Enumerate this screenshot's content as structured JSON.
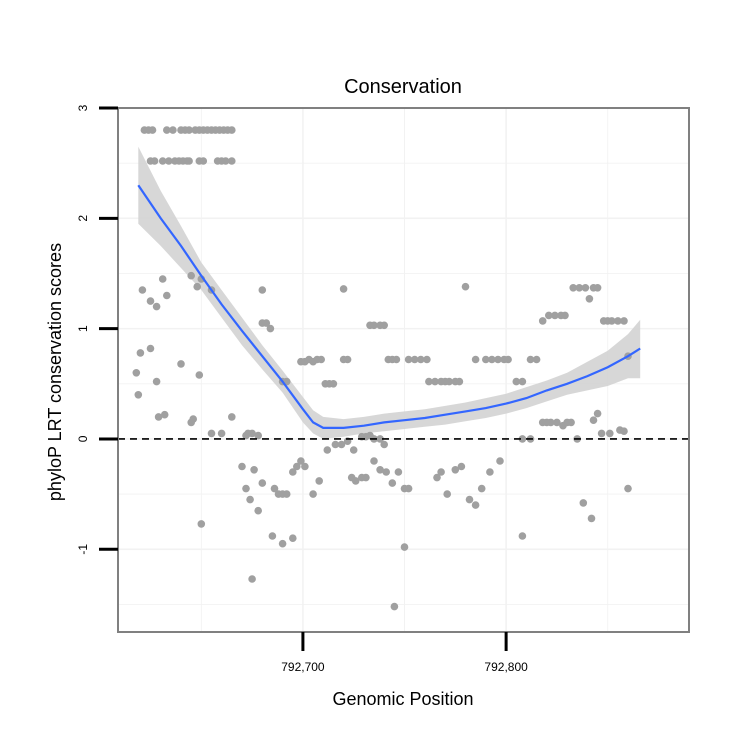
{
  "chart_data": {
    "type": "scatter",
    "title": "Conservation",
    "xlabel": "Genomic Position",
    "ylabel": "phyloP LRT conservation scores",
    "xlim": [
      792609,
      792890
    ],
    "ylim": [
      -1.75,
      3.0
    ],
    "x_ticks": [
      {
        "value": 792700,
        "label": "792,700"
      },
      {
        "value": 792800,
        "label": "792,800"
      }
    ],
    "y_ticks": [
      {
        "value": -1,
        "label": "-1"
      },
      {
        "value": 0,
        "label": "0"
      },
      {
        "value": 1,
        "label": "1"
      },
      {
        "value": 2,
        "label": "2"
      },
      {
        "value": 3,
        "label": "3"
      }
    ],
    "grid": true,
    "reference_line": {
      "y": 0,
      "style": "dashed"
    },
    "colors": {
      "points": "#a0a0a0",
      "smooth": "#3366ff",
      "ribbon": "#d3d3d3",
      "reference": "#000000",
      "panel_border": "#808080",
      "grid": "#f2f2f2"
    },
    "points": [
      [
        792622,
        2.8
      ],
      [
        792624,
        2.8
      ],
      [
        792626,
        2.8
      ],
      [
        792633,
        2.8
      ],
      [
        792636,
        2.8
      ],
      [
        792640,
        2.8
      ],
      [
        792642,
        2.8
      ],
      [
        792644,
        2.8
      ],
      [
        792647,
        2.8
      ],
      [
        792649,
        2.8
      ],
      [
        792651,
        2.8
      ],
      [
        792653,
        2.8
      ],
      [
        792655,
        2.8
      ],
      [
        792657,
        2.8
      ],
      [
        792659,
        2.8
      ],
      [
        792661,
        2.8
      ],
      [
        792663,
        2.8
      ],
      [
        792665,
        2.8
      ],
      [
        792625,
        2.52
      ],
      [
        792627,
        2.52
      ],
      [
        792631,
        2.52
      ],
      [
        792634,
        2.52
      ],
      [
        792637,
        2.52
      ],
      [
        792639,
        2.52
      ],
      [
        792641,
        2.52
      ],
      [
        792643,
        2.52
      ],
      [
        792644,
        2.52
      ],
      [
        792649,
        2.52
      ],
      [
        792651,
        2.52
      ],
      [
        792658,
        2.52
      ],
      [
        792660,
        2.52
      ],
      [
        792662,
        2.52
      ],
      [
        792665,
        2.52
      ],
      [
        792621,
        1.35
      ],
      [
        792625,
        1.25
      ],
      [
        792628,
        1.2
      ],
      [
        792631,
        1.45
      ],
      [
        792633,
        1.3
      ],
      [
        792645,
        1.48
      ],
      [
        792648,
        1.38
      ],
      [
        792650,
        1.45
      ],
      [
        792655,
        1.35
      ],
      [
        792680,
        1.35
      ],
      [
        792720,
        1.36
      ],
      [
        792733,
        1.03
      ],
      [
        792735,
        1.03
      ],
      [
        792738,
        1.03
      ],
      [
        792740,
        1.03
      ],
      [
        792618,
        0.6
      ],
      [
        792619,
        0.4
      ],
      [
        792620,
        0.78
      ],
      [
        792625,
        0.82
      ],
      [
        792628,
        0.52
      ],
      [
        792629,
        0.2
      ],
      [
        792632,
        0.22
      ],
      [
        792640,
        0.68
      ],
      [
        792645,
        0.15
      ],
      [
        792646,
        0.18
      ],
      [
        792649,
        0.58
      ],
      [
        792655,
        0.05
      ],
      [
        792660,
        0.05
      ],
      [
        792665,
        0.2
      ],
      [
        792672,
        0.03
      ],
      [
        792673,
        0.05
      ],
      [
        792675,
        0.05
      ],
      [
        792678,
        0.03
      ],
      [
        792680,
        1.05
      ],
      [
        792682,
        1.05
      ],
      [
        792684,
        1.0
      ],
      [
        792690,
        0.52
      ],
      [
        792692,
        0.52
      ],
      [
        792699,
        0.7
      ],
      [
        792701,
        0.7
      ],
      [
        792703,
        0.72
      ],
      [
        792705,
        0.7
      ],
      [
        792707,
        0.72
      ],
      [
        792709,
        0.72
      ],
      [
        792711,
        0.5
      ],
      [
        792713,
        0.5
      ],
      [
        792715,
        0.5
      ],
      [
        792720,
        0.72
      ],
      [
        792722,
        0.72
      ],
      [
        792724,
        -0.35
      ],
      [
        792726,
        -0.38
      ],
      [
        792729,
        0.02
      ],
      [
        792731,
        0.02
      ],
      [
        792733,
        0.03
      ],
      [
        792735,
        0.0
      ],
      [
        792738,
        0.0
      ],
      [
        792740,
        -0.05
      ],
      [
        792742,
        0.72
      ],
      [
        792744,
        0.72
      ],
      [
        792746,
        0.72
      ],
      [
        792752,
        0.72
      ],
      [
        792755,
        0.72
      ],
      [
        792758,
        0.72
      ],
      [
        792761,
        0.72
      ],
      [
        792762,
        0.52
      ],
      [
        792765,
        0.52
      ],
      [
        792768,
        0.52
      ],
      [
        792770,
        0.52
      ],
      [
        792772,
        0.52
      ],
      [
        792775,
        0.52
      ],
      [
        792777,
        0.52
      ],
      [
        792780,
        1.38
      ],
      [
        792785,
        0.72
      ],
      [
        792790,
        0.72
      ],
      [
        792793,
        0.72
      ],
      [
        792796,
        0.72
      ],
      [
        792799,
        0.72
      ],
      [
        792801,
        0.72
      ],
      [
        792805,
        0.52
      ],
      [
        792808,
        0.52
      ],
      [
        792812,
        0.72
      ],
      [
        792815,
        0.72
      ],
      [
        792818,
        1.07
      ],
      [
        792821,
        1.12
      ],
      [
        792824,
        1.12
      ],
      [
        792827,
        1.12
      ],
      [
        792829,
        1.12
      ],
      [
        792833,
        1.37
      ],
      [
        792836,
        1.37
      ],
      [
        792839,
        1.37
      ],
      [
        792841,
        1.27
      ],
      [
        792843,
        1.37
      ],
      [
        792845,
        1.37
      ],
      [
        792848,
        1.07
      ],
      [
        792850,
        1.07
      ],
      [
        792852,
        1.07
      ],
      [
        792855,
        1.07
      ],
      [
        792858,
        1.07
      ],
      [
        792860,
        0.75
      ],
      [
        792670,
        -0.25
      ],
      [
        792672,
        -0.45
      ],
      [
        792674,
        -0.55
      ],
      [
        792676,
        -0.28
      ],
      [
        792678,
        -0.65
      ],
      [
        792680,
        -0.4
      ],
      [
        792686,
        -0.45
      ],
      [
        792688,
        -0.5
      ],
      [
        792690,
        -0.5
      ],
      [
        792692,
        -0.5
      ],
      [
        792695,
        -0.3
      ],
      [
        792697,
        -0.25
      ],
      [
        792699,
        -0.2
      ],
      [
        792701,
        -0.25
      ],
      [
        792705,
        -0.5
      ],
      [
        792708,
        -0.38
      ],
      [
        792712,
        -0.1
      ],
      [
        792716,
        -0.05
      ],
      [
        792719,
        -0.05
      ],
      [
        792722,
        -0.02
      ],
      [
        792725,
        -0.1
      ],
      [
        792729,
        -0.35
      ],
      [
        792731,
        -0.35
      ],
      [
        792735,
        -0.2
      ],
      [
        792738,
        -0.28
      ],
      [
        792741,
        -0.3
      ],
      [
        792744,
        -0.4
      ],
      [
        792747,
        -0.3
      ],
      [
        792750,
        -0.45
      ],
      [
        792752,
        -0.45
      ],
      [
        792766,
        -0.35
      ],
      [
        792768,
        -0.3
      ],
      [
        792771,
        -0.5
      ],
      [
        792775,
        -0.28
      ],
      [
        792778,
        -0.25
      ],
      [
        792782,
        -0.55
      ],
      [
        792785,
        -0.6
      ],
      [
        792788,
        -0.45
      ],
      [
        792792,
        -0.3
      ],
      [
        792797,
        -0.2
      ],
      [
        792685,
        -0.88
      ],
      [
        792690,
        -0.95
      ],
      [
        792695,
        -0.9
      ],
      [
        792650,
        -0.77
      ],
      [
        792675,
        -1.27
      ],
      [
        792745,
        -1.52
      ],
      [
        792750,
        -0.98
      ],
      [
        792808,
        -0.88
      ],
      [
        792838,
        -0.58
      ],
      [
        792842,
        -0.72
      ],
      [
        792808,
        0.0
      ],
      [
        792812,
        0.0
      ],
      [
        792818,
        0.15
      ],
      [
        792820,
        0.15
      ],
      [
        792822,
        0.15
      ],
      [
        792825,
        0.15
      ],
      [
        792828,
        0.12
      ],
      [
        792830,
        0.15
      ],
      [
        792832,
        0.15
      ],
      [
        792835,
        0.0
      ],
      [
        792843,
        0.17
      ],
      [
        792845,
        0.23
      ],
      [
        792847,
        0.05
      ],
      [
        792851,
        0.05
      ],
      [
        792856,
        0.08
      ],
      [
        792858,
        0.07
      ],
      [
        792860,
        -0.45
      ]
    ],
    "smooth_line": {
      "x": [
        792619,
        792630,
        792640,
        792650,
        792660,
        792670,
        792680,
        792690,
        792700,
        792705,
        792710,
        792720,
        792730,
        792740,
        792750,
        792760,
        792770,
        792780,
        792790,
        792800,
        792810,
        792820,
        792830,
        792840,
        792850,
        792860,
        792866
      ],
      "y": [
        2.3,
        2.0,
        1.75,
        1.48,
        1.22,
        0.98,
        0.75,
        0.52,
        0.27,
        0.15,
        0.1,
        0.1,
        0.12,
        0.15,
        0.17,
        0.19,
        0.22,
        0.25,
        0.28,
        0.32,
        0.37,
        0.44,
        0.5,
        0.57,
        0.65,
        0.75,
        0.82
      ]
    },
    "confidence_band": {
      "upper": [
        2.65,
        2.25,
        1.93,
        1.6,
        1.35,
        1.1,
        0.85,
        0.62,
        0.38,
        0.26,
        0.2,
        0.18,
        0.2,
        0.23,
        0.25,
        0.27,
        0.3,
        0.33,
        0.37,
        0.41,
        0.47,
        0.53,
        0.6,
        0.7,
        0.8,
        0.95,
        1.08
      ],
      "lower": [
        1.95,
        1.75,
        1.55,
        1.35,
        1.1,
        0.85,
        0.63,
        0.42,
        0.15,
        0.05,
        0.0,
        0.02,
        0.05,
        0.07,
        0.09,
        0.11,
        0.13,
        0.16,
        0.19,
        0.23,
        0.28,
        0.34,
        0.4,
        0.44,
        0.48,
        0.55,
        0.55
      ]
    }
  }
}
